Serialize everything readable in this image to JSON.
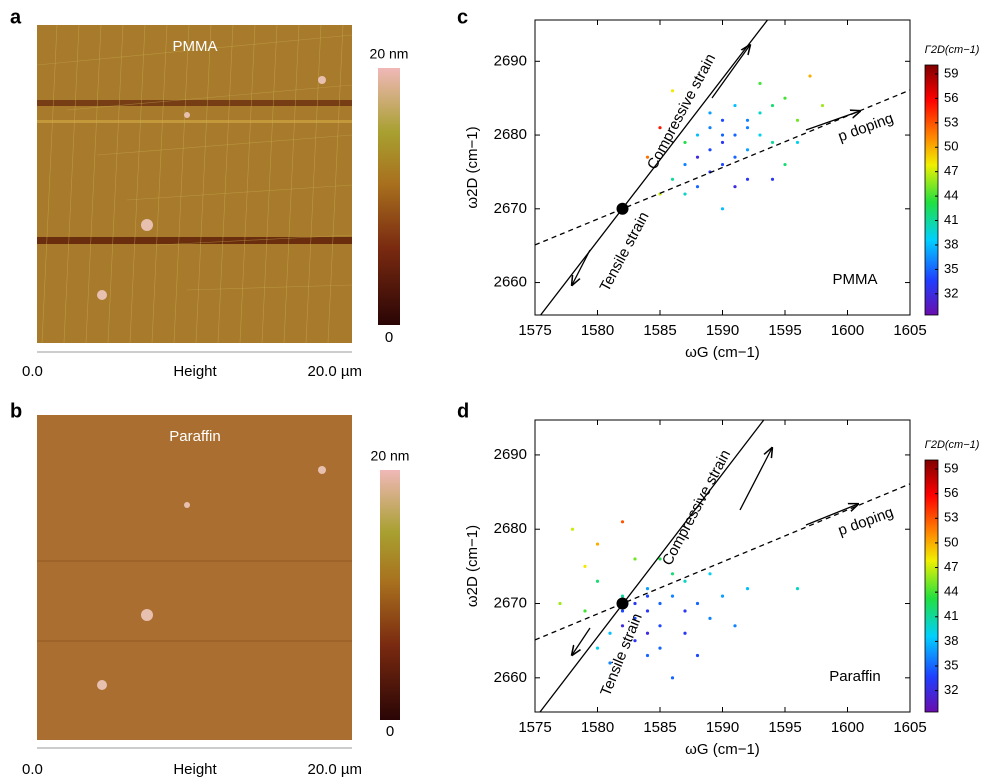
{
  "chart_data": [
    {
      "type": "image",
      "panel": "a",
      "title": "PMMA",
      "colorbar_max_label": "20 nm",
      "colorbar_min_label": "0",
      "x_start": "0.0",
      "x_label": "Height",
      "x_end": "20.0 µm"
    },
    {
      "type": "image",
      "panel": "b",
      "title": "Paraffin",
      "colorbar_max_label": "20 nm",
      "colorbar_min_label": "0",
      "x_start": "0.0",
      "x_label": "Height",
      "x_end": "20.0 µm"
    },
    {
      "type": "scatter",
      "panel": "c",
      "label": "PMMA",
      "xlabel": "ωG (cm−1)",
      "ylabel": "ω2D (cm−1)",
      "colorbar_label": "Γ2D(cm−1)",
      "xlim": [
        1575,
        1605
      ],
      "ylim": [
        2655.6,
        2695.6
      ],
      "xticks": [
        1575,
        1580,
        1585,
        1590,
        1595,
        1600,
        1605
      ],
      "yticks": [
        2660,
        2670,
        2680,
        2690
      ],
      "clim": [
        29.4,
        60.1
      ],
      "cticks": [
        32,
        35,
        38,
        41,
        44,
        47,
        50,
        53,
        56,
        59
      ],
      "colormap": "jet",
      "x": [
        1590,
        1589,
        1591,
        1588,
        1592,
        1590,
        1589,
        1587,
        1593,
        1594,
        1591,
        1588,
        1586,
        1595,
        1592,
        1590,
        1593,
        1587,
        1596,
        1589,
        1585,
        1597,
        1591,
        1594,
        1588,
        1586,
        1592,
        1590,
        1595,
        1584,
        1598,
        1593,
        1589,
        1587,
        1591,
        1596,
        1585,
        1594,
        1590,
        1592
      ],
      "y": [
        2679,
        2678,
        2680,
        2677,
        2681,
        2682,
        2675,
        2676,
        2683,
        2684,
        2677,
        2680,
        2674,
        2685,
        2678,
        2676,
        2680,
        2679,
        2682,
        2681,
        2672,
        2688,
        2684,
        2679,
        2673,
        2686,
        2674,
        2670,
        2676,
        2677,
        2684,
        2687,
        2683,
        2672,
        2673,
        2679,
        2681,
        2674,
        2680,
        2682
      ],
      "color_values": [
        33,
        34,
        35,
        32,
        36,
        34,
        33,
        36,
        40,
        42,
        35,
        38,
        41,
        44,
        37,
        34,
        39,
        43,
        45,
        36,
        47,
        50,
        38,
        41,
        35,
        48,
        33,
        38,
        42,
        52,
        46,
        44,
        37,
        40,
        32,
        39,
        55,
        33,
        35,
        36
      ],
      "lines": [
        {
          "style": "solid",
          "x": [
            1575.45,
            1593.6
          ],
          "y": [
            2655.6,
            2695.6
          ]
        },
        {
          "style": "dashed",
          "x": [
            1575,
            1605
          ],
          "y": [
            2665.1,
            2686.1
          ]
        }
      ],
      "point": {
        "x": 1582,
        "y": 2670
      },
      "annotations": [
        "Compressive strain",
        "Tensile strain",
        "p doping"
      ]
    },
    {
      "type": "scatter",
      "panel": "d",
      "label": "Paraffin",
      "xlabel": "ωG (cm−1)",
      "ylabel": "ω2D (cm−1)",
      "colorbar_label": "Γ2D(cm−1)",
      "xlim": [
        1575,
        1605
      ],
      "ylim": [
        2655.4,
        2694.7
      ],
      "xticks": [
        1575,
        1580,
        1585,
        1590,
        1595,
        1600,
        1605
      ],
      "yticks": [
        2660,
        2670,
        2680,
        2690
      ],
      "clim": [
        29.4,
        60.1
      ],
      "cticks": [
        32,
        35,
        38,
        41,
        44,
        47,
        50,
        53,
        56,
        59
      ],
      "colormap": "jet",
      "x": [
        1584,
        1583,
        1585,
        1582,
        1586,
        1584,
        1583,
        1581,
        1587,
        1588,
        1585,
        1582,
        1580,
        1589,
        1586,
        1584,
        1579,
        1587,
        1590,
        1583,
        1578,
        1580,
        1582,
        1585,
        1592,
        1588,
        1581,
        1577,
        1586,
        1584,
        1589,
        1583,
        1591,
        1579,
        1596,
        1585,
        1582,
        1587,
        1580,
        1584
      ],
      "y": [
        2669,
        2668,
        2670,
        2667,
        2671,
        2672,
        2665,
        2666,
        2673,
        2670,
        2667,
        2671,
        2664,
        2668,
        2674,
        2663,
        2669,
        2666,
        2671,
        2676,
        2680,
        2678,
        2681,
        2676,
        2672,
        2663,
        2662,
        2670,
        2660,
        2666,
        2674,
        2670,
        2667,
        2675,
        2672,
        2664,
        2669,
        2669,
        2673,
        2671
      ],
      "color_values": [
        33,
        34,
        35,
        32,
        36,
        37,
        33,
        38,
        40,
        35,
        34,
        41,
        39,
        36,
        42,
        35,
        44,
        33,
        37,
        45,
        47,
        50,
        53,
        43,
        38,
        34,
        36,
        46,
        35,
        32,
        39,
        33,
        36,
        48,
        40,
        35,
        34,
        33,
        42,
        34
      ],
      "lines": [
        {
          "style": "solid",
          "x": [
            1575.4,
            1593.3
          ],
          "y": [
            2655.4,
            2694.7
          ]
        },
        {
          "style": "dashed",
          "x": [
            1575,
            1605
          ],
          "y": [
            2665.1,
            2686.1
          ]
        }
      ],
      "point": {
        "x": 1582,
        "y": 2670
      },
      "annotations": [
        "Compressive strain",
        "Tensile strain",
        "p doping"
      ]
    }
  ]
}
